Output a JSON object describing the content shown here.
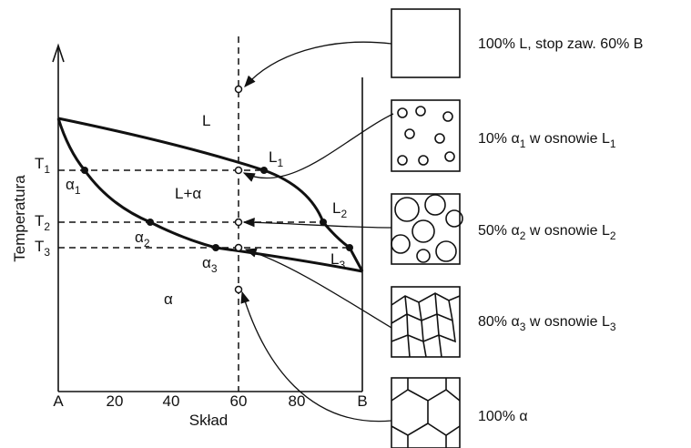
{
  "axes": {
    "y_title": "Temperatura",
    "x_title": "Skład",
    "x_ticks": [
      "A",
      "20",
      "40",
      "60",
      "80",
      "B"
    ],
    "y_ticks": [
      [
        "T",
        "1"
      ],
      [
        "T",
        "2"
      ],
      [
        "T",
        "3"
      ]
    ]
  },
  "regions": [
    "L",
    "L+α",
    "α"
  ],
  "points": [
    [
      "α",
      "1"
    ],
    [
      "α",
      "2"
    ],
    [
      "α",
      "3"
    ],
    [
      "L",
      "1"
    ],
    [
      "L",
      "2"
    ],
    [
      "L",
      "3"
    ]
  ],
  "panels": [
    {
      "caption": [
        "100% L, stop zaw. 60% B"
      ]
    },
    {
      "caption": [
        "10% α",
        "1",
        " w osnowie L",
        "1"
      ]
    },
    {
      "caption": [
        "50% α",
        "2",
        " w osnowie L",
        "2"
      ]
    },
    {
      "caption": [
        "80% α",
        "3",
        " w osnowie L",
        "3"
      ]
    },
    {
      "caption": [
        "100% α"
      ]
    }
  ]
}
